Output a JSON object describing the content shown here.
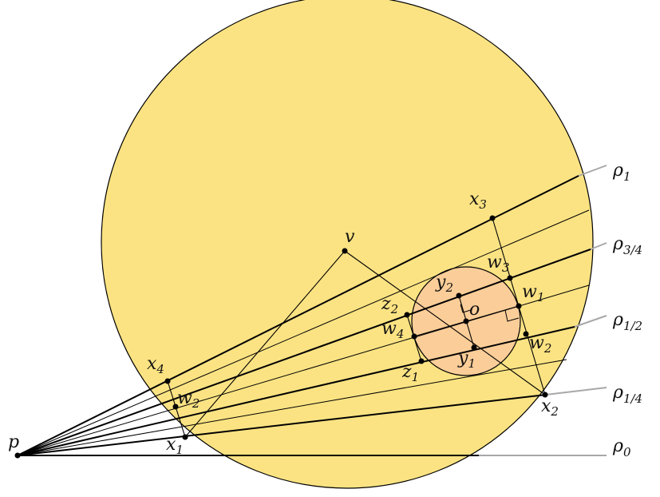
{
  "colors": {
    "big_disk": "#fbe383",
    "small_disk": "#fbcd98",
    "ray_ext": "#a8a8a8",
    "ink": "#000000"
  },
  "labels": {
    "p": "p",
    "v": "v",
    "o": "o",
    "x1": {
      "base": "x",
      "sub": "1"
    },
    "x2": {
      "base": "x",
      "sub": "2"
    },
    "x3": {
      "base": "x",
      "sub": "3"
    },
    "x4": {
      "base": "x",
      "sub": "4"
    },
    "y1": {
      "base": "y",
      "sub": "1"
    },
    "y2": {
      "base": "y",
      "sub": "2"
    },
    "z1": {
      "base": "z",
      "sub": "1"
    },
    "z2": {
      "base": "z",
      "sub": "2"
    },
    "w1": {
      "base": "w",
      "sub": "1"
    },
    "w2_right": {
      "base": "w",
      "sub": "2"
    },
    "w2_left": {
      "base": "w",
      "sub": "2"
    },
    "w3": {
      "base": "w",
      "sub": "3"
    },
    "w4": {
      "base": "w",
      "sub": "4"
    },
    "rho1": {
      "base": "ρ",
      "sub": "1"
    },
    "rho34": {
      "base": "ρ",
      "sub": "3/4"
    },
    "rho12": {
      "base": "ρ",
      "sub": "1/2"
    },
    "rho14": {
      "base": "ρ",
      "sub": "1/4"
    },
    "rho0": {
      "base": "ρ",
      "sub": "0"
    }
  }
}
